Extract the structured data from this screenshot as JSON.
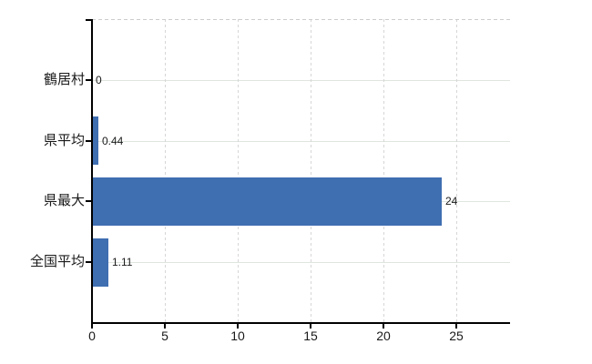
{
  "chart_data": {
    "type": "bar",
    "orientation": "horizontal",
    "title": "",
    "xlabel": "",
    "ylabel": "",
    "categories": [
      "鶴居村",
      "県平均",
      "県最大",
      "全国平均"
    ],
    "values": [
      0,
      0.44,
      24,
      1.11
    ],
    "value_labels": [
      "0",
      "0.44",
      "24",
      "1.11"
    ],
    "x_ticks": [
      0,
      5,
      10,
      15,
      20,
      25
    ],
    "x_tick_labels": [
      "0",
      "5",
      "10",
      "15",
      "20",
      "25"
    ],
    "xlim": [
      0,
      28.7
    ],
    "grid": true,
    "legend": false,
    "colors": {
      "bar": "#3f6eb1",
      "axis": "#000000",
      "grid_horizontal": "#dfe5df",
      "grid_vertical": "#d6d6d6",
      "plot_top_border": "#cccccc",
      "text": "#1a1a1a",
      "background": "#ffffff"
    }
  }
}
